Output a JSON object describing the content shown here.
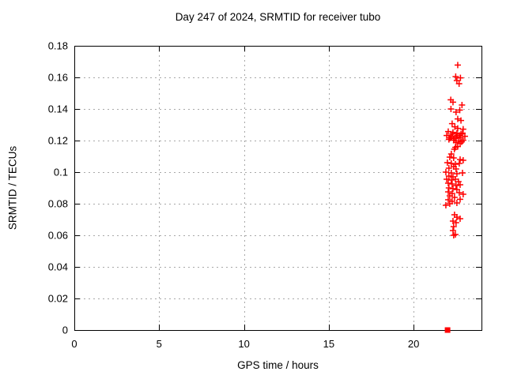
{
  "chart_data": {
    "type": "scatter",
    "title": "Day 247 of 2024, SRMTID for receiver tubo",
    "xlabel": "GPS time / hours",
    "ylabel": "SRMTID / TECUs",
    "xlim": [
      0,
      24
    ],
    "ylim": [
      0,
      0.18
    ],
    "grid": true,
    "legend": "none",
    "x_ticks": {
      "values": [
        0,
        5,
        10,
        15,
        20
      ],
      "labels": [
        "0",
        "5",
        "10",
        "15",
        "20"
      ]
    },
    "y_ticks": {
      "values": [
        0,
        0.02,
        0.04,
        0.06,
        0.08,
        0.1,
        0.12,
        0.14,
        0.16,
        0.18
      ],
      "labels": [
        "0",
        "0.02",
        "0.04",
        "0.06",
        "0.08",
        "0.1",
        "0.12",
        "0.14",
        "0.16",
        "0.18"
      ]
    },
    "colors": {
      "marker": "#ff0000",
      "axis": "#000000",
      "grid": "#a8a8a8",
      "background": "#ffffff"
    },
    "series": [
      {
        "marker": "plus",
        "color": "#ff0000",
        "points": [
          [
            22.6,
            0.1678
          ],
          [
            22.48,
            0.1605
          ],
          [
            22.76,
            0.1597
          ],
          [
            22.55,
            0.158
          ],
          [
            22.68,
            0.156
          ],
          [
            22.19,
            0.1458
          ],
          [
            22.32,
            0.1443
          ],
          [
            22.85,
            0.1425
          ],
          [
            22.2,
            0.14
          ],
          [
            22.72,
            0.1393
          ],
          [
            22.5,
            0.138
          ],
          [
            22.6,
            0.1337
          ],
          [
            22.79,
            0.1327
          ],
          [
            22.27,
            0.1307
          ],
          [
            22.43,
            0.1287
          ],
          [
            22.6,
            0.1277
          ],
          [
            22.92,
            0.1272
          ],
          [
            22.04,
            0.1257
          ],
          [
            22.32,
            0.1252
          ],
          [
            22.55,
            0.1247
          ],
          [
            22.79,
            0.1242
          ],
          [
            21.95,
            0.1232
          ],
          [
            22.22,
            0.1227
          ],
          [
            22.5,
            0.1222
          ],
          [
            22.74,
            0.1217
          ],
          [
            23.02,
            0.1227
          ],
          [
            22.08,
            0.1207
          ],
          [
            22.36,
            0.1202
          ],
          [
            22.64,
            0.1197
          ],
          [
            22.92,
            0.1202
          ],
          [
            22.5,
            0.1187
          ],
          [
            22.74,
            0.1182
          ],
          [
            22.6,
            0.1162
          ],
          [
            22.46,
            0.1157
          ],
          [
            22.15,
            0.1217
          ],
          [
            22.29,
            0.1242
          ],
          [
            22.88,
            0.1247
          ],
          [
            22.69,
            0.1232
          ],
          [
            22.41,
            0.1212
          ],
          [
            22.57,
            0.1232
          ],
          [
            22.83,
            0.1192
          ],
          [
            22.4,
            0.1145
          ],
          [
            22.22,
            0.1115
          ],
          [
            22.13,
            0.1095
          ],
          [
            22.36,
            0.109
          ],
          [
            22.74,
            0.108
          ],
          [
            22.92,
            0.1075
          ],
          [
            21.99,
            0.106
          ],
          [
            22.22,
            0.1055
          ],
          [
            22.46,
            0.105
          ],
          [
            22.69,
            0.1055
          ],
          [
            22.36,
            0.1035
          ],
          [
            22.08,
            0.1025
          ],
          [
            22.5,
            0.102
          ],
          [
            21.9,
            0.1
          ],
          [
            22.22,
            0.0995
          ],
          [
            22.55,
            0.099
          ],
          [
            22.88,
            0.0995
          ],
          [
            22.08,
            0.0975
          ],
          [
            22.32,
            0.097
          ],
          [
            21.95,
            0.0955
          ],
          [
            22.22,
            0.095
          ],
          [
            22.46,
            0.0955
          ],
          [
            22.64,
            0.094
          ],
          [
            22.04,
            0.093
          ],
          [
            22.27,
            0.0925
          ],
          [
            22.5,
            0.0915
          ],
          [
            22.74,
            0.092
          ],
          [
            22.08,
            0.09
          ],
          [
            22.32,
            0.0895
          ],
          [
            22.55,
            0.089
          ],
          [
            22.04,
            0.0875
          ],
          [
            22.27,
            0.0865
          ],
          [
            22.69,
            0.087
          ],
          [
            22.92,
            0.086
          ],
          [
            22.13,
            0.085
          ],
          [
            22.41,
            0.084
          ],
          [
            22.04,
            0.0825
          ],
          [
            22.74,
            0.0828
          ],
          [
            22.27,
            0.0815
          ],
          [
            22.55,
            0.0805
          ],
          [
            22.13,
            0.08
          ],
          [
            21.9,
            0.079
          ],
          [
            22.41,
            0.073
          ],
          [
            22.55,
            0.0715
          ],
          [
            22.74,
            0.0705
          ],
          [
            22.32,
            0.069
          ],
          [
            22.5,
            0.068
          ],
          [
            22.36,
            0.0655
          ],
          [
            22.32,
            0.063
          ],
          [
            22.46,
            0.0605
          ],
          [
            22.36,
            0.06
          ]
        ]
      },
      {
        "marker": "filled-square",
        "color": "#ff0000",
        "points": [
          [
            22.0,
            0.0
          ]
        ]
      }
    ]
  }
}
